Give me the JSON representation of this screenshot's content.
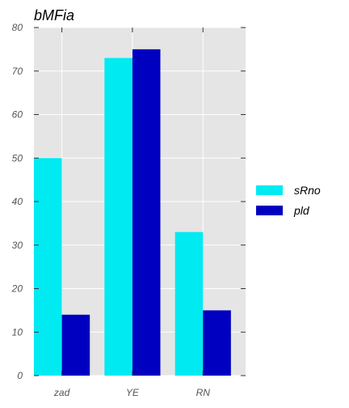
{
  "chart_data": {
    "type": "bar",
    "title": "bMFia",
    "categories": [
      "zad",
      "YE",
      "RN"
    ],
    "series": [
      {
        "name": "sRno",
        "values": [
          50,
          73,
          33
        ],
        "color": "#00eaf2"
      },
      {
        "name": "pld",
        "values": [
          14,
          75,
          15
        ],
        "color": "#0000c0"
      }
    ],
    "xlabel": "",
    "ylabel": "",
    "ylim": [
      0,
      80
    ],
    "yticks": [
      0,
      10,
      20,
      30,
      40,
      50,
      60,
      70,
      80
    ],
    "grid": true,
    "legend": "right",
    "background": "#e5e5e5"
  }
}
